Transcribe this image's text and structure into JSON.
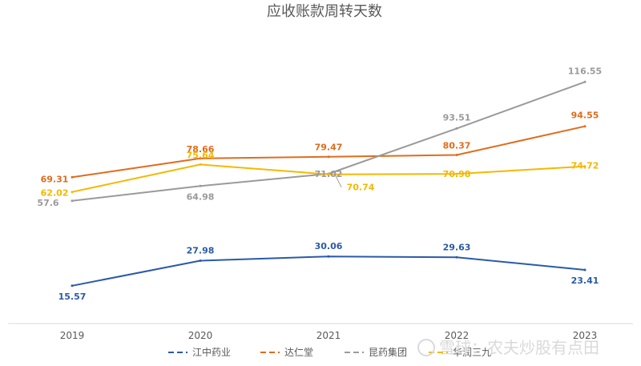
{
  "chart_data": {
    "type": "line",
    "title": "应收账款周转天数",
    "categories": [
      "2019",
      "2020",
      "2021",
      "2022",
      "2023"
    ],
    "series": [
      {
        "name": "江中药业",
        "values": [
          15.57,
          27.98,
          30.06,
          29.63,
          23.41
        ],
        "color": "#2a5aa8"
      },
      {
        "name": "达仁堂",
        "values": [
          69.31,
          78.66,
          79.47,
          80.37,
          94.55
        ],
        "color": "#e06c1c"
      },
      {
        "name": "昆药集团",
        "values": [
          57.6,
          64.98,
          71.02,
          93.51,
          116.55
        ],
        "color": "#9a9a9a"
      },
      {
        "name": "华润三九",
        "values": [
          62.02,
          75.64,
          70.74,
          70.98,
          74.72
        ],
        "color": "#f5b800"
      }
    ],
    "xlabel": "",
    "ylabel": "",
    "grid": false,
    "legend": "bottom"
  },
  "watermark": {
    "text": "雪球：农夫炒股有点田"
  }
}
